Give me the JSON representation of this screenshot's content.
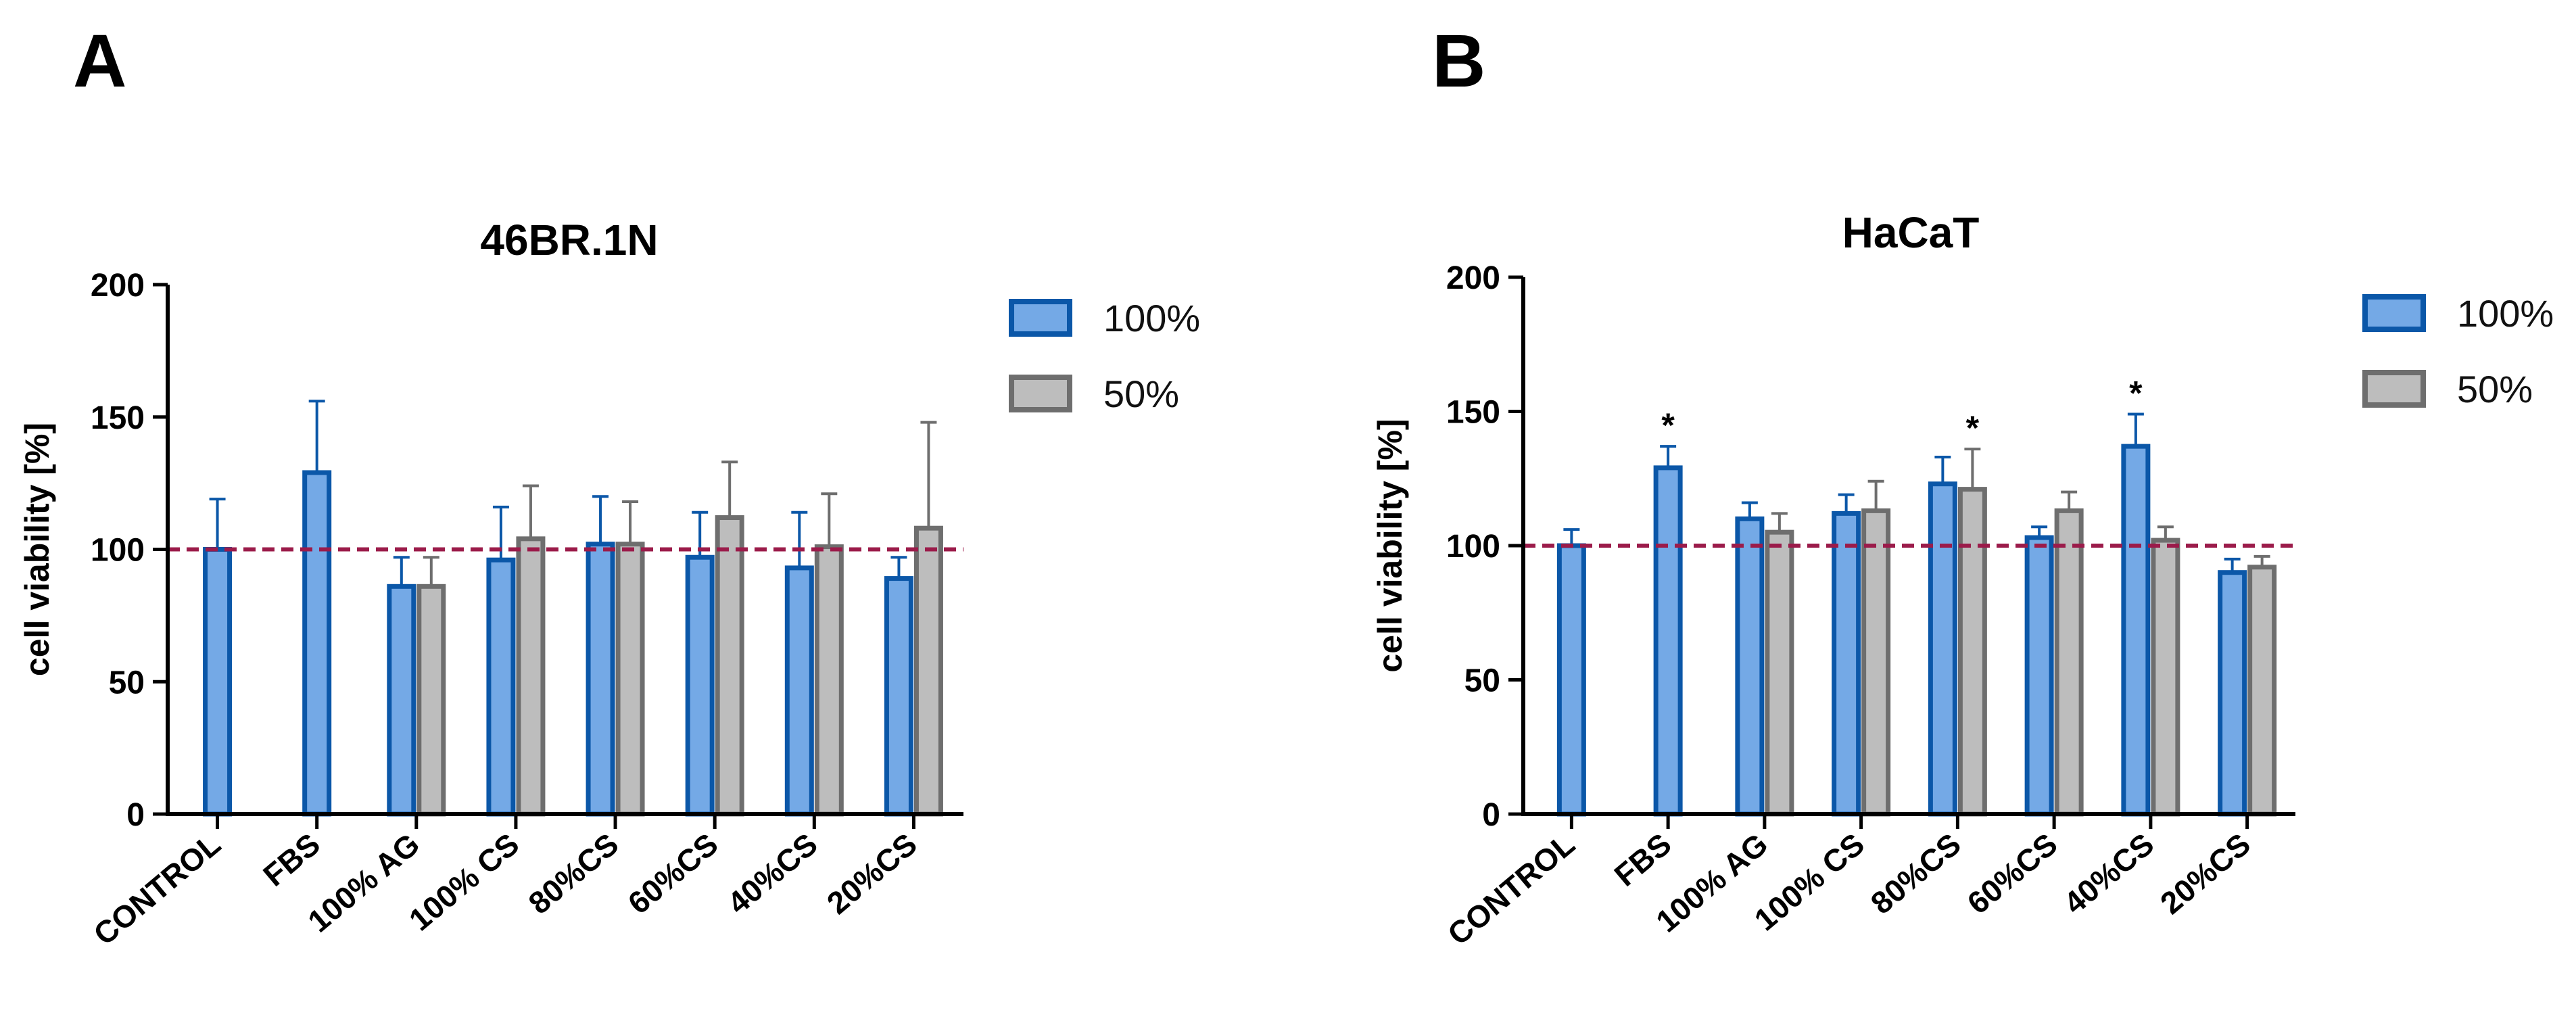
{
  "panels": [
    {
      "letter": "A"
    },
    {
      "letter": "B"
    }
  ],
  "colors": {
    "series_100_fill": "#74a9e6",
    "series_100_stroke": "#0b57a8",
    "series_50_fill": "#bdbdbd",
    "series_50_stroke": "#6e6e6e",
    "reference_line": "#9b1b4a",
    "axis": "#000000"
  },
  "chart_data": [
    {
      "type": "bar",
      "title": "46BR.1N",
      "xlabel": "",
      "ylabel": "cell viability [%]",
      "ylim": [
        0,
        200
      ],
      "yticks": [
        "0",
        "50",
        "100",
        "150",
        "200"
      ],
      "categories": [
        "CONTROL",
        "FBS",
        "100% AG",
        "100% CS",
        "80%CS",
        "60%CS",
        "40%CS",
        "20%CS"
      ],
      "series": [
        {
          "name": "100%",
          "values": [
            100,
            129,
            86,
            96,
            102,
            97,
            93,
            89
          ],
          "errors": [
            19,
            27,
            11,
            20,
            18,
            17,
            21,
            8
          ]
        },
        {
          "name": "50%",
          "values": [
            null,
            null,
            86,
            104,
            102,
            112,
            101,
            108
          ],
          "errors": [
            null,
            null,
            11,
            20,
            16,
            21,
            20,
            40
          ]
        }
      ],
      "reference_line": 100,
      "significance": [],
      "legend": "top-right"
    },
    {
      "type": "bar",
      "title": "HaCaT",
      "xlabel": "",
      "ylabel": "cell viability [%]",
      "ylim": [
        0,
        200
      ],
      "yticks": [
        "0",
        "50",
        "100",
        "150",
        "200"
      ],
      "categories": [
        "CONTROL",
        "FBS",
        "100% AG",
        "100% CS",
        "80%CS",
        "60%CS",
        "40%CS",
        "20%CS"
      ],
      "series": [
        {
          "name": "100%",
          "values": [
            100,
            129,
            110,
            112,
            123,
            103,
            137,
            90
          ],
          "errors": [
            6,
            8,
            6,
            7,
            10,
            4,
            12,
            5
          ]
        },
        {
          "name": "50%",
          "values": [
            null,
            null,
            105,
            113,
            121,
            113,
            102,
            92
          ],
          "errors": [
            null,
            null,
            7,
            11,
            15,
            7,
            5,
            4
          ]
        }
      ],
      "reference_line": 100,
      "significance": [
        {
          "category": "FBS",
          "series": "100%",
          "label": "*"
        },
        {
          "category": "80%CS",
          "series": "50%",
          "label": "*"
        },
        {
          "category": "40%CS",
          "series": "100%",
          "label": "*"
        }
      ],
      "legend": "top-right"
    }
  ]
}
